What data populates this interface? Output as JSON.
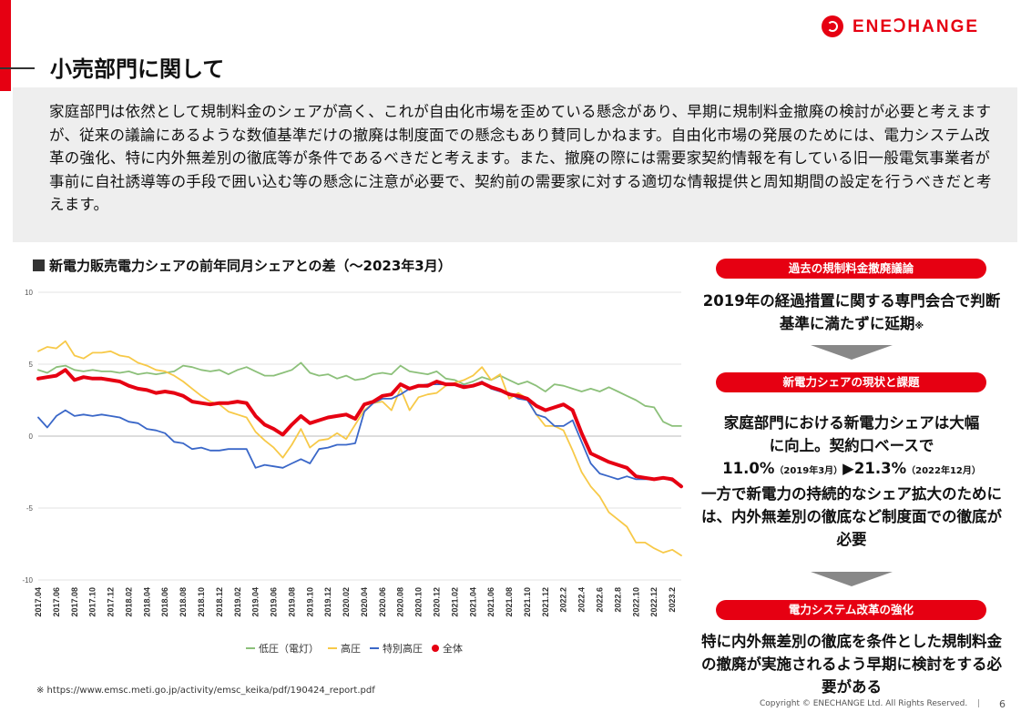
{
  "header": {
    "title": "小売部門に関して",
    "logo_text": "ENEↃHANGE",
    "accent_color": "#e60012"
  },
  "summary": {
    "text": "家庭部門は依然として規制料金のシェアが高く、これが自由化市場を歪めている懸念があり、早期に規制料金撤廃の検討が必要と考えますが、従来の議論にあるような数値基準だけの撤廃は制度面での懸念もあり賛同しかねます。自由化市場の発展のためには、電力システム改革の強化、特に内外無差別の徹底等が条件であるべきだと考えます。また、撤廃の際には需要家契約情報を有している旧一般電気事業者が事前に自社誘導等の手段で囲い込む等の懸念に注意が必要で、契約前の需要家に対する適切な情報提供と周知期間の設定を行うべきだと考えます。"
  },
  "chart_title": "新電力販売電力シェアの前年同月シェアとの差（～2023年3月）",
  "chart_data": {
    "type": "line",
    "title": "新電力販売電力シェアの前年同月シェアとの差（～2023年3月）",
    "ylim": [
      -10,
      10
    ],
    "yticks": [
      "10",
      "5",
      "0",
      "-5",
      "-10"
    ],
    "grid": true,
    "legend_position": "bottom",
    "x": [
      "2017.04",
      "2017.05",
      "2017.06",
      "2017.07",
      "2017.08",
      "2017.09",
      "2017.10",
      "2017.11",
      "2017.12",
      "2018.01",
      "2018.02",
      "2018.03",
      "2018.04",
      "2018.05",
      "2018.06",
      "2018.07",
      "2018.08",
      "2018.09",
      "2018.10",
      "2018.11",
      "2018.12",
      "2019.01",
      "2019.02",
      "2019.03",
      "2019.04",
      "2019.05",
      "2019.06",
      "2019.07",
      "2019.08",
      "2019.09",
      "2019.10",
      "2019.11",
      "2019.12",
      "2020.01",
      "2020.02",
      "2020.03",
      "2020.04",
      "2020.05",
      "2020.06",
      "2020.07",
      "2020.08",
      "2020.09",
      "2020.10",
      "2020.11",
      "2020.12",
      "2021.01",
      "2021.02",
      "2021.03",
      "2021.04",
      "2021.05",
      "2021.06",
      "2021.07",
      "2021.08",
      "2021.09",
      "2021.10",
      "2021.11",
      "2021.12",
      "2022.1",
      "2022.2",
      "2022.3",
      "2022.4",
      "2022.5",
      "2022.6",
      "2022.7",
      "2022.8",
      "2022.9",
      "2022.10",
      "2022.11",
      "2022.12",
      "2023.1",
      "2023.2",
      "2023.3"
    ],
    "xtick_labels": [
      "2017.04",
      "2017.06",
      "2017.08",
      "2017.10",
      "2017.12",
      "2018.02",
      "2018.04",
      "2018.06",
      "2018.08",
      "2018.10",
      "2018.12",
      "2019.02",
      "2019.04",
      "2019.06",
      "2019.08",
      "2019.10",
      "2019.12",
      "2020.02",
      "2020.04",
      "2020.06",
      "2020.08",
      "2020.10",
      "2020.12",
      "2021.02",
      "2021.04",
      "2021.06",
      "2021.08",
      "2021.10",
      "2021.12",
      "2022.2",
      "2022.4",
      "2022.6",
      "2022.8",
      "2022.10",
      "2022.12",
      "2023.2"
    ],
    "series": [
      {
        "name": "低圧（電灯）",
        "color": "#8cc07a",
        "width": 1.8,
        "values": [
          4.6,
          4.4,
          4.8,
          4.9,
          4.6,
          4.5,
          4.6,
          4.5,
          4.5,
          4.4,
          4.5,
          4.3,
          4.4,
          4.3,
          4.4,
          4.5,
          4.9,
          4.8,
          4.6,
          4.5,
          4.6,
          4.3,
          4.6,
          4.8,
          4.5,
          4.2,
          4.2,
          4.4,
          4.6,
          5.1,
          4.4,
          4.2,
          4.3,
          4.0,
          4.2,
          3.9,
          4.0,
          4.3,
          4.4,
          4.3,
          4.9,
          4.5,
          4.4,
          4.3,
          4.5,
          4.0,
          3.9,
          3.6,
          3.8,
          4.1,
          3.9,
          4.2,
          3.9,
          3.6,
          3.8,
          3.5,
          3.1,
          3.6,
          3.5,
          3.3,
          3.1,
          3.3,
          3.1,
          3.4,
          3.1,
          2.8,
          2.5,
          2.1,
          2.0,
          1.0,
          0.7,
          0.7
        ]
      },
      {
        "name": "高圧",
        "color": "#f7c948",
        "width": 1.8,
        "values": [
          5.9,
          6.2,
          6.1,
          6.6,
          5.6,
          5.4,
          5.8,
          5.8,
          5.9,
          5.6,
          5.5,
          5.1,
          4.9,
          4.6,
          4.5,
          4.2,
          3.8,
          3.3,
          2.8,
          2.4,
          2.2,
          1.7,
          1.5,
          1.3,
          0.3,
          -0.3,
          -0.8,
          -1.5,
          -0.6,
          0.5,
          -0.8,
          -0.3,
          -0.2,
          0.2,
          -0.2,
          0.8,
          1.8,
          2.3,
          2.4,
          1.8,
          3.3,
          1.8,
          2.7,
          2.9,
          3.0,
          3.5,
          3.7,
          3.9,
          4.2,
          4.8,
          3.9,
          4.3,
          2.6,
          3.0,
          2.6,
          1.5,
          0.7,
          0.7,
          0.4,
          -1.0,
          -2.5,
          -3.5,
          -4.2,
          -5.3,
          -5.8,
          -6.3,
          -7.4,
          -7.4,
          -7.8,
          -8.1,
          -7.9,
          -8.3
        ]
      },
      {
        "name": "特別高圧",
        "color": "#3a67c8",
        "width": 1.8,
        "values": [
          1.3,
          0.6,
          1.4,
          1.8,
          1.4,
          1.5,
          1.4,
          1.5,
          1.4,
          1.3,
          1.0,
          0.9,
          0.5,
          0.4,
          0.2,
          -0.4,
          -0.5,
          -0.9,
          -0.8,
          -1.0,
          -1.0,
          -0.9,
          -0.9,
          -0.9,
          -2.2,
          -2.0,
          -2.1,
          -2.2,
          -1.9,
          -1.6,
          -1.9,
          -0.9,
          -0.8,
          -0.6,
          -0.6,
          -0.5,
          1.7,
          2.3,
          2.6,
          2.6,
          2.9,
          3.3,
          3.5,
          3.6,
          3.6,
          3.6,
          3.6,
          3.5,
          3.5,
          3.8,
          3.3,
          3.1,
          3.0,
          2.6,
          2.5,
          1.5,
          1.3,
          0.7,
          0.7,
          1.1,
          -0.4,
          -1.9,
          -2.6,
          -2.8,
          -3.0,
          -2.8,
          -3.0,
          -3.0,
          -3.0,
          -2.9,
          -3.1,
          -3.4
        ]
      },
      {
        "name": "全体",
        "color": "#e60012",
        "width": 4,
        "values": [
          4.0,
          4.1,
          4.2,
          4.6,
          3.9,
          4.1,
          4.0,
          4.0,
          3.9,
          3.8,
          3.5,
          3.3,
          3.2,
          3.0,
          3.1,
          3.0,
          2.8,
          2.4,
          2.3,
          2.2,
          2.3,
          2.3,
          2.4,
          2.3,
          1.4,
          0.8,
          0.5,
          0.1,
          0.8,
          1.4,
          0.9,
          1.1,
          1.3,
          1.4,
          1.5,
          1.2,
          2.2,
          2.4,
          2.8,
          2.9,
          3.6,
          3.3,
          3.5,
          3.5,
          3.8,
          3.6,
          3.6,
          3.4,
          3.5,
          3.7,
          3.4,
          3.2,
          2.9,
          2.8,
          2.6,
          2.1,
          1.8,
          2.0,
          2.2,
          1.8,
          0.2,
          -1.2,
          -1.5,
          -1.8,
          -2.0,
          -2.2,
          -2.8,
          -2.9,
          -3.0,
          -2.9,
          -3.0,
          -3.5
        ]
      }
    ]
  },
  "legend": [
    {
      "label": "低圧（電灯）",
      "color": "#8cc07a",
      "marker": "line"
    },
    {
      "label": "高圧",
      "color": "#f7c948",
      "marker": "line"
    },
    {
      "label": "特別高圧",
      "color": "#3a67c8",
      "marker": "line"
    },
    {
      "label": "全体",
      "color": "#e60012",
      "marker": "dot"
    }
  ],
  "source": "※ https://www.emsc.meti.go.jp/activity/emsc_keika/pdf/190424_report.pdf",
  "side": {
    "section1_label": "過去の規制料金撤廃議論",
    "section1_text": "2019年の経過措置に関する専門会合で判断基準に満たずに延期",
    "section1_mark": "※",
    "section2_label": "新電力シェアの現状と課題",
    "section2_line1": "家庭部門における新電力シェアは大幅",
    "section2_line2": "に向上。契約口ベースで",
    "section2_v1": "11.0%",
    "section2_v1_note": "（2019年3月）",
    "section2_arrow": "▶",
    "section2_v2": "21.3%",
    "section2_v2_note": "（2022年12月）",
    "section2_line4": "一方で新電力の持続的なシェア拡大のためには、内外無差別の徹底など制度面での徹底が必要",
    "section3_label": "電力システム改革の強化",
    "section3_text": "特に内外無差別の徹底を条件とした規制料金の撤廃が実施されるよう早期に検討をする必要がある"
  },
  "footer": {
    "copyright": "Copyright © ENECHANGE Ltd.  All Rights Reserved.",
    "separator": "|",
    "page": "6"
  }
}
